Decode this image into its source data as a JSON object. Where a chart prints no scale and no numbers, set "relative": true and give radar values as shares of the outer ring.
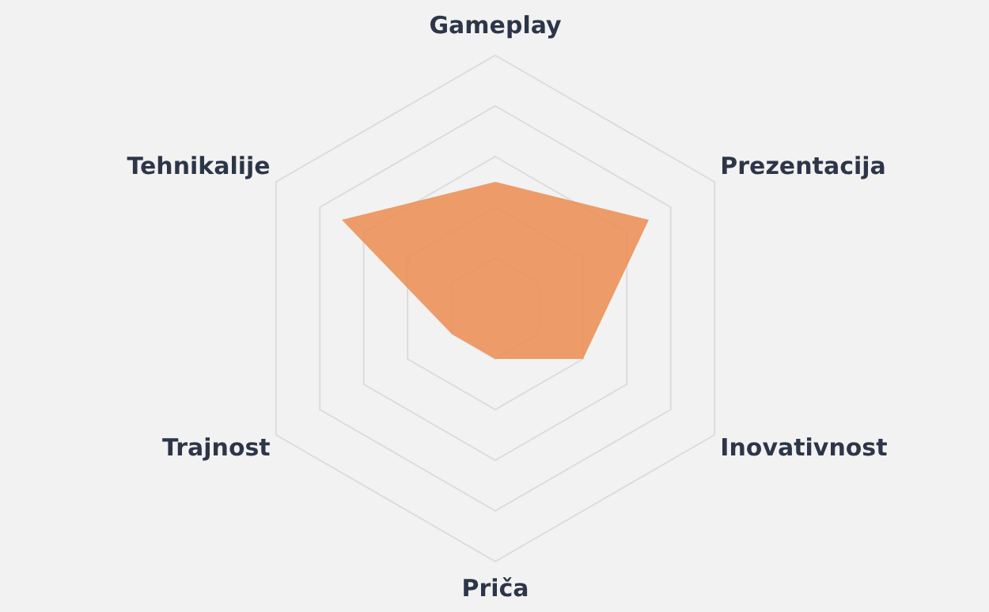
{
  "chart_data": {
    "type": "radar",
    "relative": true,
    "categories": [
      "Gameplay",
      "Prezentacija",
      "Inovativnost",
      "Priča",
      "Trajnost",
      "Tehnikalije"
    ],
    "series": [
      {
        "color": "#ec8c50",
        "values": [
          0.5,
          0.7,
          0.4,
          0.2,
          0.2,
          0.7
        ]
      }
    ],
    "grid": true
  }
}
